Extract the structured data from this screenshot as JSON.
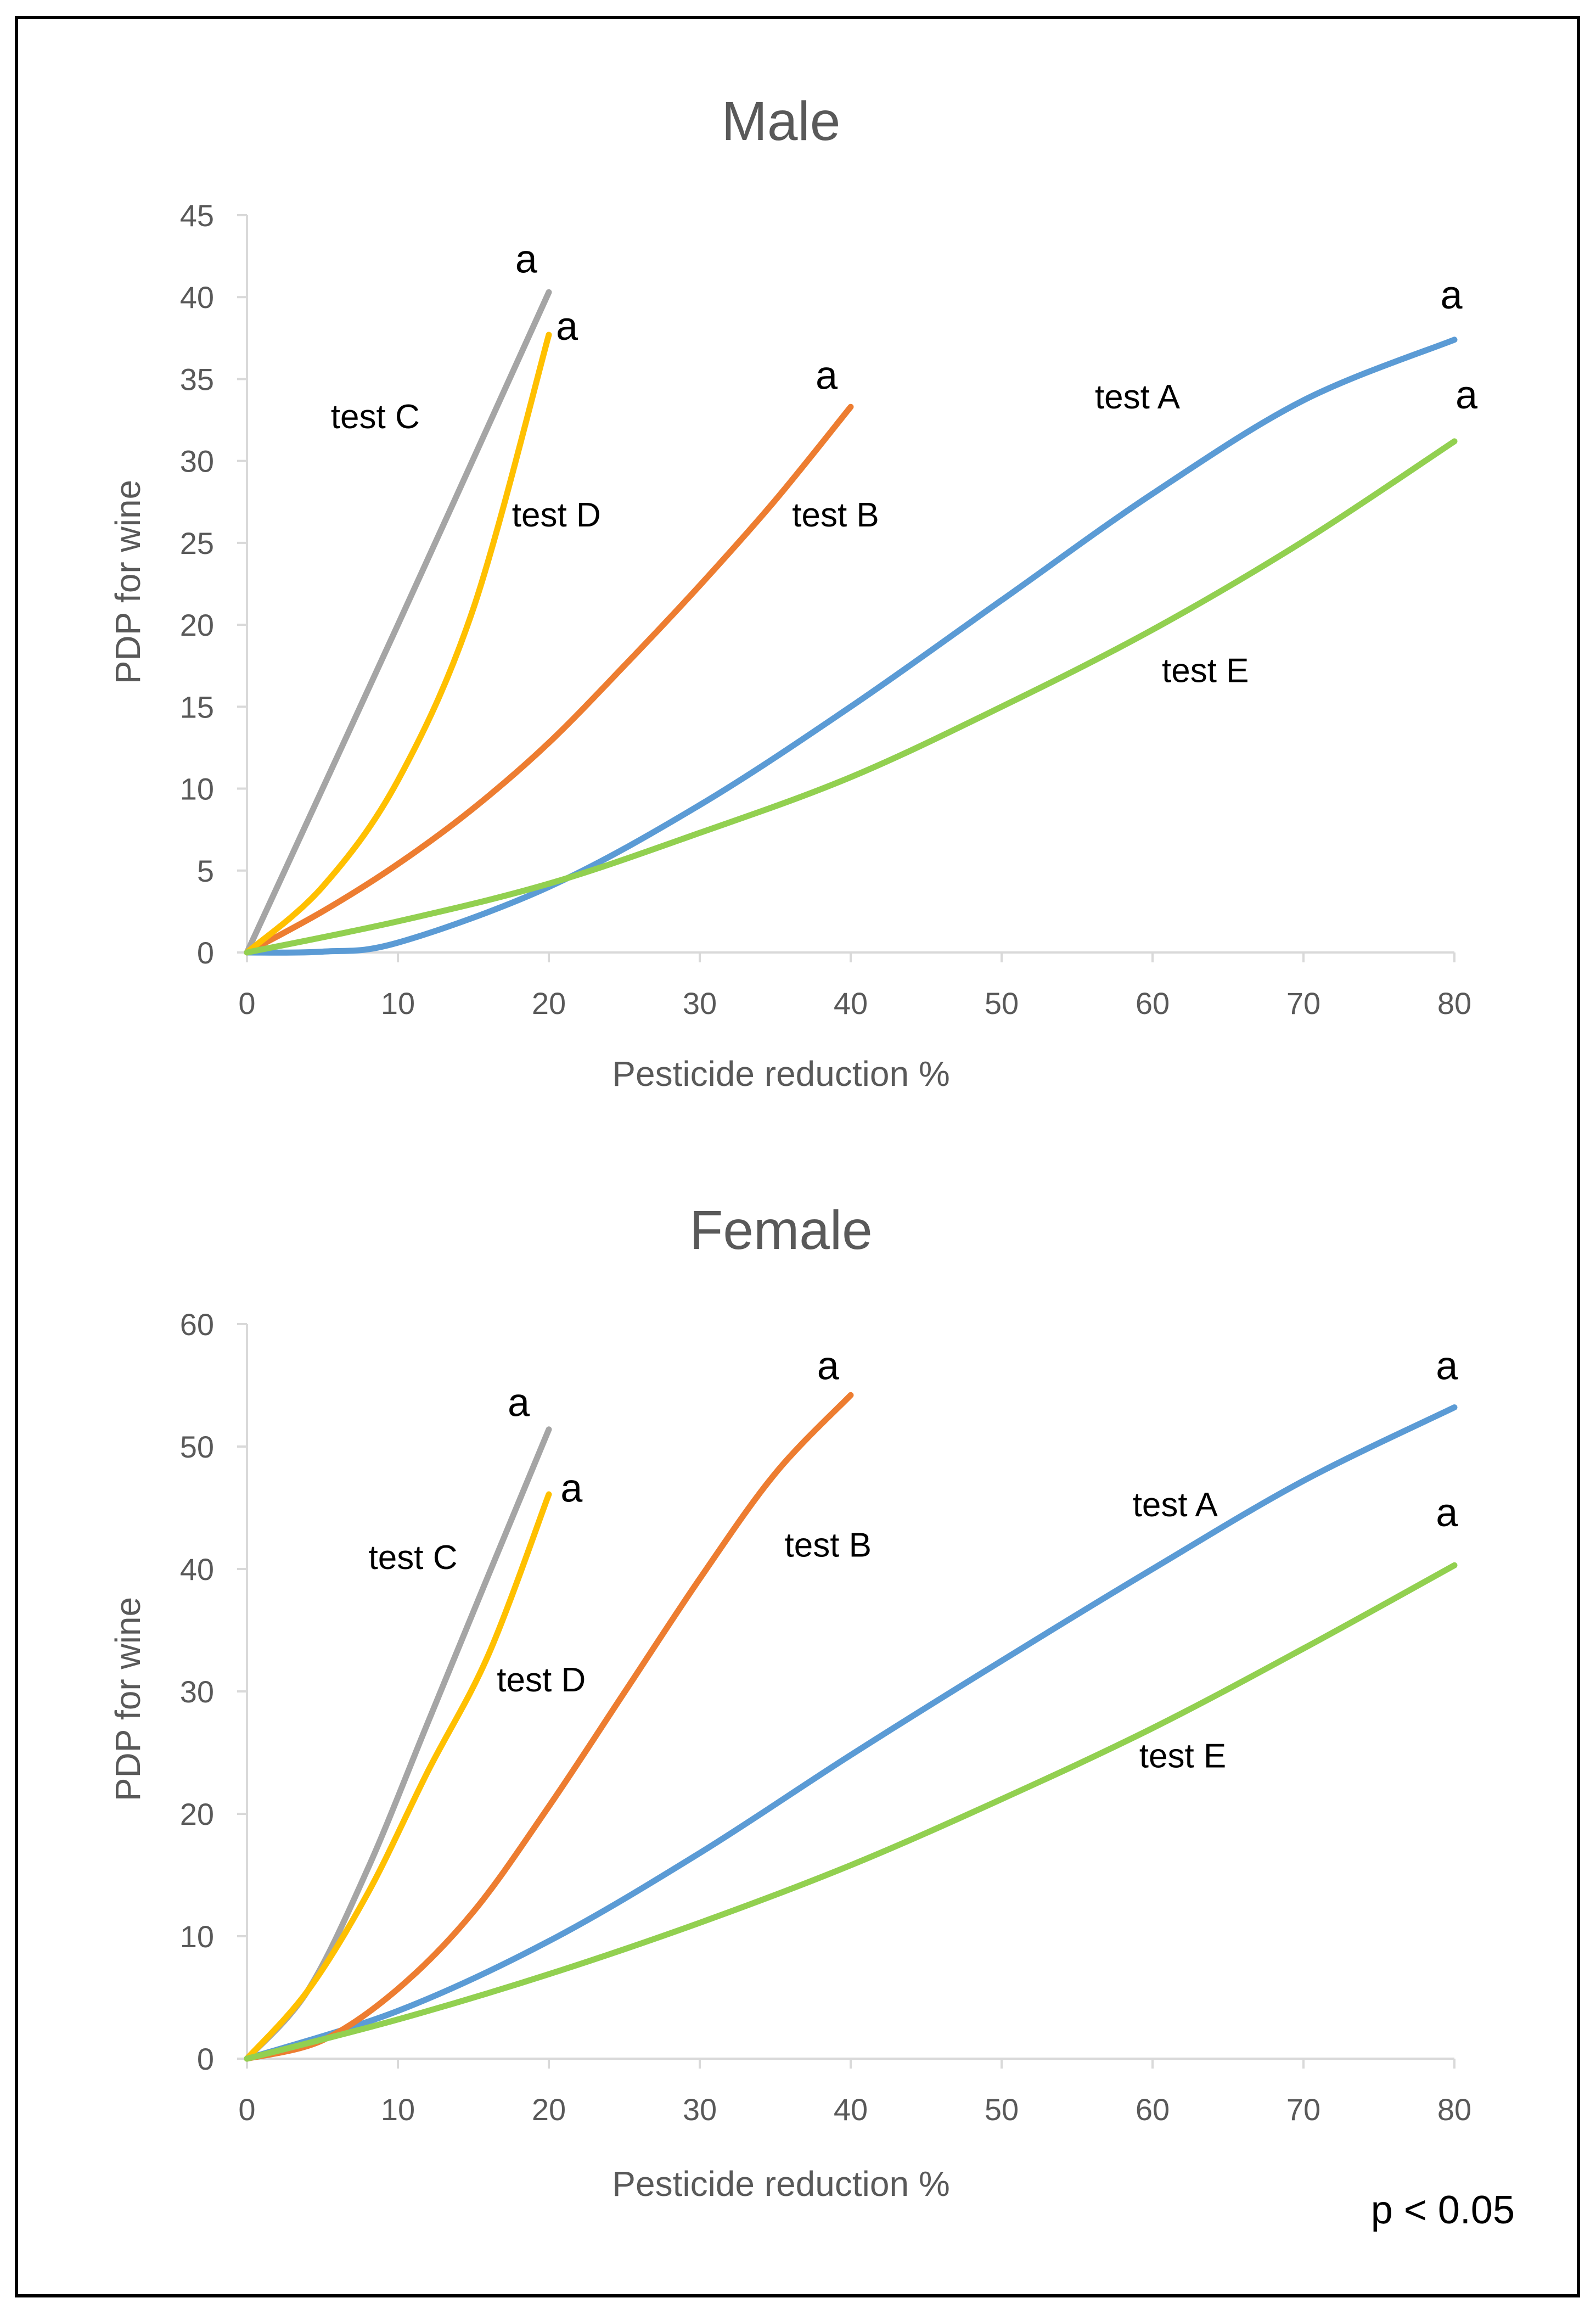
{
  "chart_data": [
    {
      "type": "line",
      "title": "Male",
      "xlabel": "Pesticide reduction %",
      "ylabel": "PDP for wine",
      "xlim": [
        0,
        80
      ],
      "ylim": [
        0,
        45
      ],
      "xticks": [
        0,
        10,
        20,
        30,
        40,
        50,
        60,
        70,
        80
      ],
      "yticks": [
        0,
        5,
        10,
        15,
        20,
        25,
        30,
        35,
        40,
        45
      ],
      "series": [
        {
          "name": "test A",
          "color": "#5B9BD5",
          "x": [
            0,
            5,
            10,
            20,
            30,
            40,
            50,
            60,
            70,
            80
          ],
          "y": [
            0,
            0.05,
            0.6,
            4,
            9,
            15,
            21.5,
            28,
            33.7,
            37.4
          ]
        },
        {
          "name": "test B",
          "color": "#ED7D31",
          "x": [
            0,
            5,
            10,
            15,
            20,
            25,
            30,
            35,
            40
          ],
          "y": [
            0,
            2.5,
            5.4,
            8.8,
            12.8,
            17.5,
            22.4,
            27.6,
            33.3
          ]
        },
        {
          "name": "test C",
          "color": "#A5A5A5",
          "x": [
            0,
            10,
            20
          ],
          "y": [
            0,
            20,
            40.3
          ]
        },
        {
          "name": "test D",
          "color": "#FFC000",
          "x": [
            0,
            5,
            10,
            15,
            20
          ],
          "y": [
            0,
            4,
            10.5,
            21,
            37.7
          ]
        },
        {
          "name": "test E",
          "color": "#92D050",
          "x": [
            0,
            10,
            20,
            30,
            40,
            50,
            60,
            70,
            80
          ],
          "y": [
            0,
            1.9,
            4.2,
            7.3,
            10.7,
            15,
            19.7,
            25.1,
            31.2
          ]
        }
      ],
      "annotations": [
        {
          "text": "test C",
          "x": 8.5,
          "y": 32
        },
        {
          "text": "test D",
          "x": 20.5,
          "y": 26
        },
        {
          "text": "test B",
          "x": 39,
          "y": 26
        },
        {
          "text": "test A",
          "x": 59,
          "y": 33.2
        },
        {
          "text": "test E",
          "x": 63.5,
          "y": 16.5
        },
        {
          "text": "a",
          "x": 18.5,
          "y": 41.5
        },
        {
          "text": "a",
          "x": 21.2,
          "y": 37.4
        },
        {
          "text": "a",
          "x": 38.4,
          "y": 34.4
        },
        {
          "text": "a",
          "x": 79.8,
          "y": 39.3
        },
        {
          "text": "a",
          "x": 80.8,
          "y": 33.2
        }
      ]
    },
    {
      "type": "line",
      "title": "Female",
      "xlabel": "Pesticide reduction %",
      "ylabel": "PDP for wine",
      "xlim": [
        0,
        80
      ],
      "ylim": [
        0,
        60
      ],
      "xticks": [
        0,
        10,
        20,
        30,
        40,
        50,
        60,
        70,
        80
      ],
      "yticks": [
        0,
        10,
        20,
        30,
        40,
        50,
        60
      ],
      "series": [
        {
          "name": "test A",
          "color": "#5B9BD5",
          "x": [
            0,
            10,
            20,
            30,
            40,
            50,
            60,
            70,
            80
          ],
          "y": [
            0,
            3.9,
            9.6,
            16.8,
            24.8,
            32.5,
            40,
            47.2,
            53.2
          ]
        },
        {
          "name": "test B",
          "color": "#ED7D31",
          "x": [
            0,
            5,
            10,
            15,
            20,
            25,
            30,
            35,
            40
          ],
          "y": [
            0,
            1.5,
            5.7,
            12,
            20.6,
            29.9,
            39.2,
            47.8,
            54.2
          ]
        },
        {
          "name": "test C",
          "color": "#A5A5A5",
          "x": [
            0,
            4,
            8,
            12,
            16,
            20
          ],
          "y": [
            0,
            5.5,
            15.5,
            27.5,
            39.5,
            51.4
          ]
        },
        {
          "name": "test D",
          "color": "#FFC000",
          "x": [
            0,
            4,
            8,
            12,
            16,
            20
          ],
          "y": [
            0,
            5.5,
            13.5,
            23.5,
            33,
            46.1
          ]
        },
        {
          "name": "test E",
          "color": "#92D050",
          "x": [
            0,
            10,
            20,
            30,
            40,
            50,
            60,
            70,
            80
          ],
          "y": [
            0,
            3.2,
            6.9,
            11.1,
            15.8,
            21.2,
            27,
            33.5,
            40.3
          ]
        }
      ],
      "annotations": [
        {
          "text": "test C",
          "x": 11,
          "y": 40
        },
        {
          "text": "test D",
          "x": 19.5,
          "y": 30
        },
        {
          "text": "test B",
          "x": 38.5,
          "y": 41
        },
        {
          "text": "test A",
          "x": 61.5,
          "y": 44.3
        },
        {
          "text": "test E",
          "x": 62,
          "y": 23.8
        },
        {
          "text": "a",
          "x": 18,
          "y": 52.5
        },
        {
          "text": "a",
          "x": 21.5,
          "y": 45.5
        },
        {
          "text": "a",
          "x": 38.5,
          "y": 55.5
        },
        {
          "text": "a",
          "x": 79.5,
          "y": 55.5
        },
        {
          "text": "a",
          "x": 79.5,
          "y": 43.5
        }
      ]
    }
  ],
  "significance_note": "p < 0.05"
}
